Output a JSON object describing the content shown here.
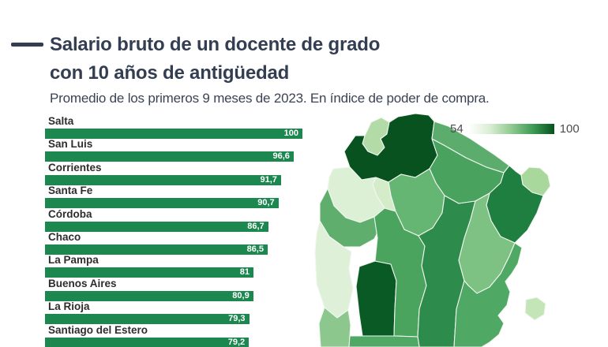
{
  "header": {
    "title_line1": "Salario bruto de un docente de grado",
    "title_line2": "con 10 años de antigüedad",
    "subtitle": "Promedio de los primeros 9 meses de 2023. En índice de poder de compra."
  },
  "chart_data": {
    "type": "bar",
    "orientation": "horizontal",
    "title": "Salario bruto de un docente de grado con 10 años de antigüedad",
    "subtitle": "Promedio de los primeros 9 meses de 2023. En índice de poder de compra.",
    "categories": [
      "Salta",
      "San Luis",
      "Corrientes",
      "Santa Fe",
      "Córdoba",
      "Chaco",
      "La Pampa",
      "Buenos Aires",
      "La Rioja",
      "Santiago del Estero"
    ],
    "values": [
      100,
      96.6,
      91.7,
      90.7,
      86.7,
      86.5,
      81,
      80.9,
      79.3,
      79.2
    ],
    "value_labels": [
      "100",
      "96,6",
      "91,7",
      "90,7",
      "86,7",
      "86,5",
      "81",
      "80,9",
      "79,3",
      "79,2"
    ],
    "xlim": [
      0,
      100
    ],
    "bar_color": "#1d8750",
    "grid": false,
    "legend_position": "none"
  },
  "map_legend": {
    "min_label": "54",
    "max_label": "100",
    "gradient_stops": [
      "#ffffff",
      "#d8edd2",
      "#8fc98f",
      "#3d9b55",
      "#07521f"
    ]
  },
  "map": {
    "description": "choropleth-argentina-north",
    "provinces": [
      {
        "name": "Jujuy",
        "color": "#b3dba7"
      },
      {
        "name": "Salta",
        "color": "#07521f"
      },
      {
        "name": "Formosa",
        "color": "#5cad6d"
      },
      {
        "name": "Chaco",
        "color": "#49a35e"
      },
      {
        "name": "Misiones",
        "color": "#a9d89c"
      },
      {
        "name": "Corrientes",
        "color": "#1f7f41"
      },
      {
        "name": "Santiago del Estero",
        "color": "#66b673"
      },
      {
        "name": "Tucumán",
        "color": "#d5ecca"
      },
      {
        "name": "Catamarca",
        "color": "#dcf0d6"
      },
      {
        "name": "La Rioja",
        "color": "#5fae6e"
      },
      {
        "name": "San Juan",
        "color": "#def0d8"
      },
      {
        "name": "San Luis",
        "color": "#0a5a26"
      },
      {
        "name": "Córdoba",
        "color": "#4aa45e"
      },
      {
        "name": "Santa Fe",
        "color": "#2d8c4b"
      },
      {
        "name": "Entre Ríos",
        "color": "#7dc282"
      },
      {
        "name": "Buenos Aires",
        "color": "#4fa863"
      },
      {
        "name": "Inset",
        "color": "#c4e5b8"
      },
      {
        "name": "Mendoza",
        "color": "#8cc78e"
      },
      {
        "name": "La Pampa",
        "color": "#4fa863"
      }
    ]
  },
  "colors": {
    "title": "#333e52",
    "subtitle": "#3a4354",
    "bar": "#1d8750",
    "bar_value_text": "#ffffff",
    "legend_text": "#4c4c4c",
    "background": "#ffffff"
  }
}
